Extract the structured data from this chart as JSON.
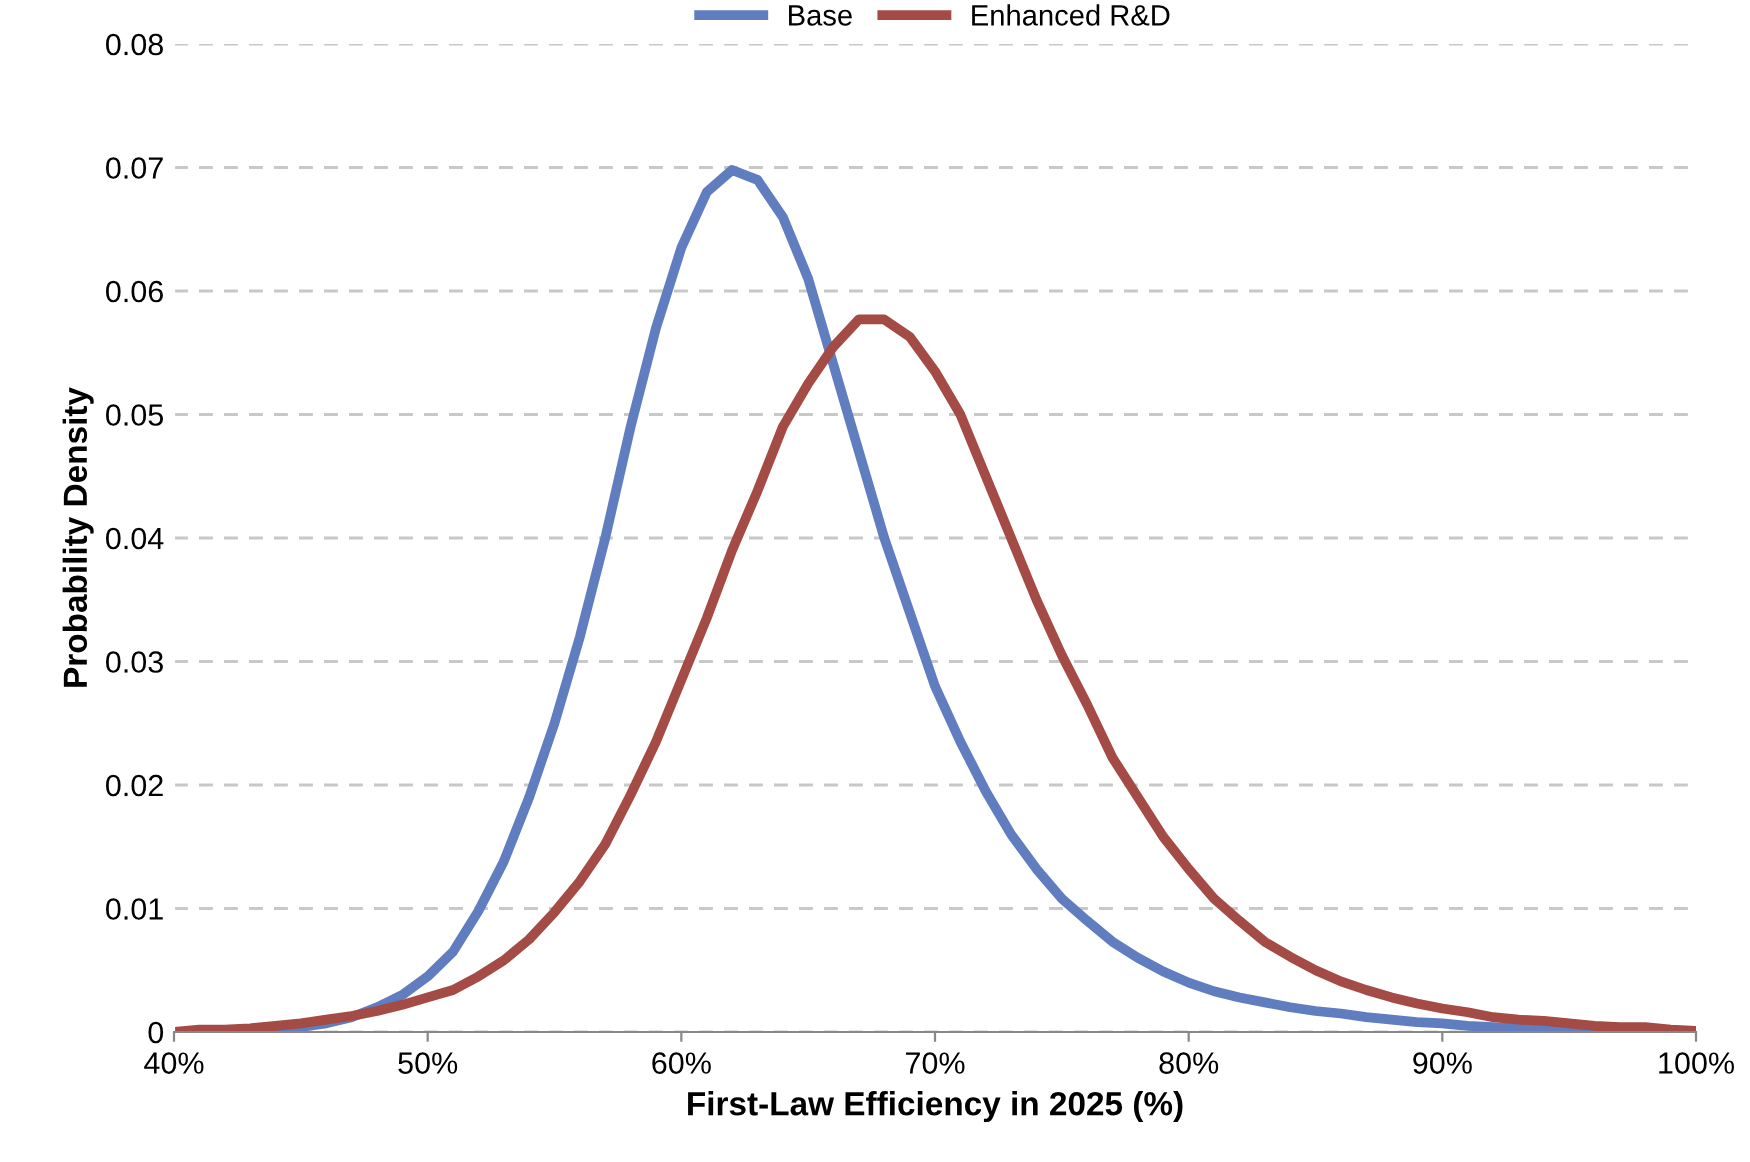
{
  "chart_data": {
    "type": "line",
    "xlabel": "First-Law Efficiency in 2025 (%)",
    "ylabel": "Probability Density",
    "x": [
      40,
      41,
      42,
      43,
      44,
      45,
      46,
      47,
      48,
      49,
      50,
      51,
      52,
      53,
      54,
      55,
      56,
      57,
      58,
      59,
      60,
      61,
      62,
      63,
      64,
      65,
      66,
      67,
      68,
      69,
      70,
      71,
      72,
      73,
      74,
      75,
      76,
      77,
      78,
      79,
      80,
      81,
      82,
      83,
      84,
      85,
      86,
      87,
      88,
      89,
      90,
      91,
      92,
      93,
      94,
      95,
      96,
      97,
      98,
      99,
      100
    ],
    "series": [
      {
        "name": "Base",
        "color": "#5f7dbf",
        "values": [
          null,
          null,
          null,
          0,
          0.0002,
          0.0004,
          0.0007,
          0.0012,
          0.002,
          0.003,
          0.0045,
          0.0065,
          0.0098,
          0.0138,
          0.019,
          0.025,
          0.032,
          0.04,
          0.049,
          0.057,
          0.0635,
          0.068,
          0.0698,
          0.069,
          0.066,
          0.061,
          0.054,
          0.047,
          0.04,
          0.034,
          0.028,
          0.0235,
          0.0195,
          0.016,
          0.0132,
          0.0108,
          0.009,
          0.0073,
          0.006,
          0.0049,
          0.004,
          0.0033,
          0.0028,
          0.0024,
          0.002,
          0.0017,
          0.0015,
          0.0012,
          0.001,
          0.0008,
          0.0007,
          0.0005,
          0.0004,
          0.0003,
          0.0002,
          0.0002,
          0.0001,
          0.0001,
          null,
          null,
          null
        ]
      },
      {
        "name": "Enhanced R&D",
        "color": "#a34b44",
        "values": [
          0,
          0.0002,
          0.0002,
          0.0003,
          0.0005,
          0.0007,
          0.001,
          0.0013,
          0.0017,
          0.0022,
          0.0028,
          0.0034,
          0.0045,
          0.0058,
          0.0075,
          0.0097,
          0.0122,
          0.0152,
          0.0192,
          0.0235,
          0.0285,
          0.0335,
          0.039,
          0.0438,
          0.049,
          0.0525,
          0.0555,
          0.0577,
          0.0577,
          0.0563,
          0.0535,
          0.05,
          0.045,
          0.04,
          0.035,
          0.0305,
          0.0265,
          0.0222,
          0.019,
          0.0158,
          0.0132,
          0.0108,
          0.009,
          0.0073,
          0.0061,
          0.005,
          0.0041,
          0.0034,
          0.0028,
          0.0023,
          0.0019,
          0.0016,
          0.0012,
          0.001,
          0.0009,
          0.0007,
          0.0005,
          0.0004,
          0.0004,
          0.0002,
          0.0001
        ]
      }
    ],
    "xlim": [
      40,
      100
    ],
    "xticks": [
      {
        "value": 40,
        "label": "40%"
      },
      {
        "value": 50,
        "label": "50%"
      },
      {
        "value": 60,
        "label": "60%"
      },
      {
        "value": 70,
        "label": "70%"
      },
      {
        "value": 80,
        "label": "80%"
      },
      {
        "value": 90,
        "label": "90%"
      },
      {
        "value": 100,
        "label": "100%"
      }
    ],
    "ylim": [
      0,
      0.08
    ],
    "yticks": [
      0,
      0.01,
      0.02,
      0.03,
      0.04,
      0.05,
      0.06,
      0.07,
      0.08
    ],
    "grid": "y",
    "legend": "top",
    "marker": "none",
    "line_style": "solid"
  }
}
